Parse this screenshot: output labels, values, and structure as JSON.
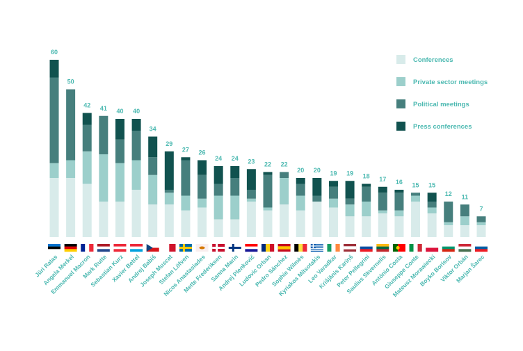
{
  "chart_data": {
    "type": "bar",
    "stacked": true,
    "title": "",
    "xlabel": "",
    "ylabel": "",
    "ylim": [
      0,
      60
    ],
    "grid": false,
    "legend_position": "top-right",
    "categories": [
      "Jüri Ratas",
      "Angela Merkel",
      "Emmanuel Macron",
      "Mark Rutte",
      "Sebastian Kurz",
      "Xavier Bettel",
      "Andrej Babiš",
      "Joseph Muscat",
      "Stefan Löfven",
      "Nicos Anastasiades",
      "Mette Frederiksen",
      "Sanna Marin",
      "Andrej Plenković",
      "Ludovic Orban",
      "Pedro Sánchez",
      "Sophie Wilmès",
      "Kyriakos Mitsotakis",
      "Leo Varadkar",
      "Krišjānis Kariņš",
      "Peter Pellegrini",
      "Saulius Skvernelis",
      "António Costa",
      "Giuseppe Conte",
      "Mateusz Morawiecki",
      "Boyko Borisov",
      "Viktor Orbán",
      "Marjan Šarec"
    ],
    "totals": [
      60,
      50,
      42,
      41,
      40,
      40,
      34,
      29,
      27,
      26,
      24,
      24,
      23,
      22,
      22,
      20,
      20,
      19,
      19,
      18,
      17,
      16,
      15,
      15,
      12,
      11,
      7
    ],
    "series": [
      {
        "name": "Conferences",
        "color": "#d8ebea",
        "values": [
          20,
          20,
          18,
          12,
          12,
          16,
          11,
          11,
          9,
          10,
          6,
          6,
          12,
          9,
          11,
          9,
          12,
          10,
          7,
          7,
          8,
          7,
          12,
          8,
          4,
          4,
          4
        ]
      },
      {
        "name": "Private sector meetings",
        "color": "#9ccfcb",
        "values": [
          5,
          6,
          11,
          16,
          13,
          10,
          10,
          4,
          5,
          3,
          8,
          8,
          1,
          1,
          9,
          5,
          0,
          3,
          4,
          5,
          1,
          2,
          2,
          2,
          1,
          3,
          1
        ]
      },
      {
        "name": "Political meetings",
        "color": "#467f7d",
        "values": [
          29,
          24,
          9,
          13,
          8,
          10,
          6,
          1,
          12,
          8,
          4,
          6,
          3,
          11,
          2,
          4,
          2,
          4,
          2,
          5,
          6,
          6,
          1,
          2,
          7,
          4,
          2
        ]
      },
      {
        "name": "Press conferences",
        "color": "#11524f",
        "values": [
          6,
          0,
          4,
          0,
          7,
          4,
          7,
          13,
          1,
          5,
          6,
          4,
          7,
          1,
          0,
          2,
          6,
          2,
          6,
          1,
          2,
          1,
          0,
          3,
          0,
          0,
          0
        ]
      }
    ],
    "flags": [
      {
        "country": "Estonia",
        "dir": "h",
        "colors": [
          "#0072ce",
          "#000000",
          "#ffffff"
        ]
      },
      {
        "country": "Germany",
        "dir": "h",
        "colors": [
          "#000000",
          "#dd0000",
          "#ffce00"
        ]
      },
      {
        "country": "France",
        "dir": "v",
        "colors": [
          "#002395",
          "#ffffff",
          "#ed2939"
        ]
      },
      {
        "country": "Netherlands",
        "dir": "h",
        "colors": [
          "#ae1c28",
          "#ffffff",
          "#21468b"
        ]
      },
      {
        "country": "Austria",
        "dir": "h",
        "colors": [
          "#ed2939",
          "#ffffff",
          "#ed2939"
        ]
      },
      {
        "country": "Luxembourg",
        "dir": "h",
        "colors": [
          "#ed2939",
          "#ffffff",
          "#00a1de"
        ]
      },
      {
        "country": "Czechia",
        "dir": "czech",
        "colors": [
          "#ffffff",
          "#d7141a",
          "#11457e"
        ]
      },
      {
        "country": "Malta",
        "dir": "v",
        "colors": [
          "#ffffff",
          "#cf142b"
        ]
      },
      {
        "country": "Sweden",
        "dir": "cross",
        "colors": [
          "#006aa7",
          "#fecc00"
        ]
      },
      {
        "country": "Cyprus",
        "dir": "cyprus",
        "colors": [
          "#ffffff",
          "#d57800"
        ]
      },
      {
        "country": "Denmark",
        "dir": "cross",
        "colors": [
          "#c8102e",
          "#ffffff"
        ]
      },
      {
        "country": "Finland",
        "dir": "cross",
        "colors": [
          "#ffffff",
          "#003580"
        ]
      },
      {
        "country": "Croatia",
        "dir": "h",
        "colors": [
          "#ff0000",
          "#ffffff",
          "#171796"
        ]
      },
      {
        "country": "Romania",
        "dir": "v",
        "colors": [
          "#002b7f",
          "#fcd116",
          "#ce1126"
        ]
      },
      {
        "country": "Spain",
        "dir": "h3",
        "colors": [
          "#c60b1e",
          "#ffc400",
          "#c60b1e"
        ]
      },
      {
        "country": "Belgium",
        "dir": "v",
        "colors": [
          "#000000",
          "#fae042",
          "#ed2939"
        ]
      },
      {
        "country": "Greece",
        "dir": "stripes",
        "colors": [
          "#0d5eaf",
          "#ffffff"
        ]
      },
      {
        "country": "Ireland",
        "dir": "v",
        "colors": [
          "#169b62",
          "#ffffff",
          "#ff883e"
        ]
      },
      {
        "country": "Latvia",
        "dir": "h3",
        "colors": [
          "#9e3039",
          "#ffffff",
          "#9e3039"
        ]
      },
      {
        "country": "Slovakia",
        "dir": "h",
        "colors": [
          "#ffffff",
          "#0b4ea2",
          "#ee1c25"
        ]
      },
      {
        "country": "Lithuania",
        "dir": "h",
        "colors": [
          "#fdb913",
          "#006a44",
          "#c1272d"
        ]
      },
      {
        "country": "Portugal",
        "dir": "pt",
        "colors": [
          "#006600",
          "#ff0000"
        ]
      },
      {
        "country": "Italy",
        "dir": "v",
        "colors": [
          "#009246",
          "#ffffff",
          "#ce2b37"
        ]
      },
      {
        "country": "Poland",
        "dir": "h",
        "colors": [
          "#ffffff",
          "#dc143c"
        ]
      },
      {
        "country": "Bulgaria",
        "dir": "h",
        "colors": [
          "#ffffff",
          "#00966e",
          "#d62612"
        ]
      },
      {
        "country": "Hungary",
        "dir": "h",
        "colors": [
          "#ce2939",
          "#ffffff",
          "#477050"
        ]
      },
      {
        "country": "Slovenia",
        "dir": "h",
        "colors": [
          "#ffffff",
          "#005da4",
          "#ed1c24"
        ]
      }
    ],
    "label_color": "#4cb9b1"
  }
}
